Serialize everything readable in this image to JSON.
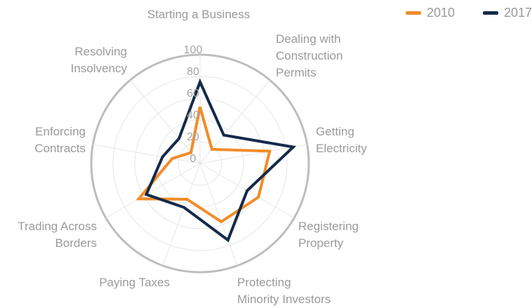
{
  "chart_data": {
    "type": "radar",
    "categories": [
      "Starting a Business",
      "Dealing with Construction Permits",
      "Getting Electricity",
      "Registering Property",
      "Protecting Minority Investors",
      "Paying Taxes",
      "Trading Across Borders",
      "Enforcing Contracts",
      "Resolving Insolvency"
    ],
    "series": [
      {
        "name": "2010",
        "color": "#f28c28",
        "values": [
          52,
          17,
          65,
          62,
          57,
          35,
          65,
          26,
          13
        ]
      },
      {
        "name": "2017",
        "color": "#14294b",
        "values": [
          75,
          34,
          87,
          50,
          75,
          43,
          57,
          35,
          30
        ]
      }
    ],
    "rlim": [
      0,
      100
    ],
    "rticks": [
      0,
      20,
      40,
      60,
      80,
      100
    ],
    "grid": true,
    "legend": "top-right"
  }
}
